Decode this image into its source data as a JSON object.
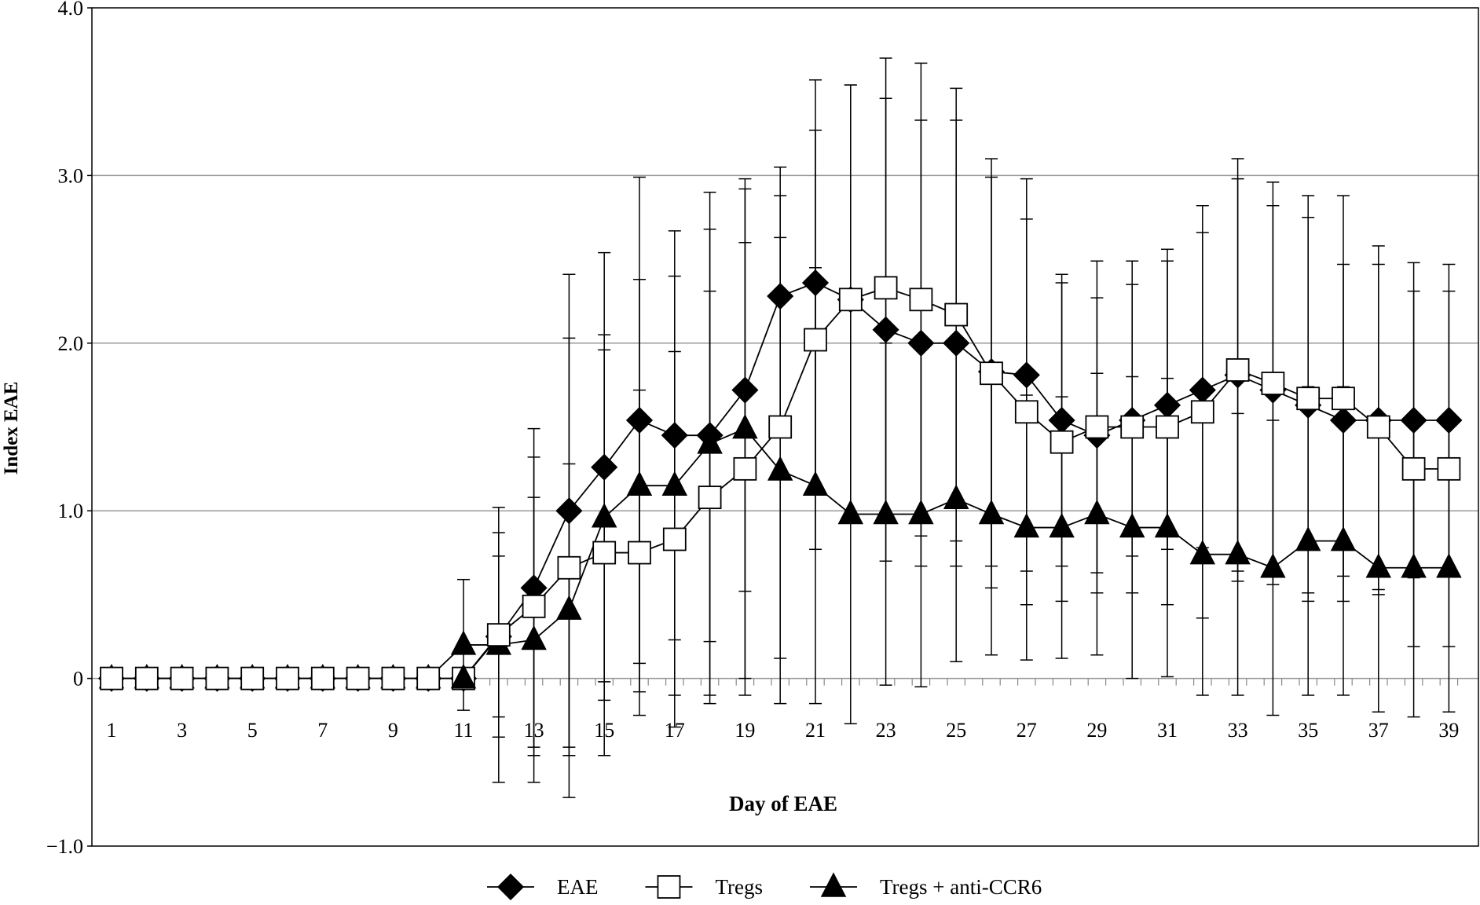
{
  "chart_data": {
    "type": "line",
    "xlabel": "Day of EAE",
    "ylabel": "Index EAE",
    "ylim": [
      -1.0,
      4.0
    ],
    "xlim": [
      1,
      39
    ],
    "yticks": [
      "−1.0",
      "0",
      "1.0",
      "2.0",
      "3.0",
      "4.0"
    ],
    "ytick_values": [
      -1,
      0,
      1,
      2,
      3,
      4
    ],
    "xticks": [
      "1",
      "3",
      "5",
      "7",
      "9",
      "11",
      "13",
      "15",
      "17",
      "19",
      "21",
      "23",
      "25",
      "27",
      "29",
      "31",
      "33",
      "35",
      "37",
      "39"
    ],
    "grid": "horizontal",
    "legend_placement": "bottom",
    "x": [
      1,
      2,
      3,
      4,
      5,
      6,
      7,
      8,
      9,
      10,
      11,
      12,
      13,
      14,
      15,
      16,
      17,
      18,
      19,
      20,
      21,
      22,
      23,
      24,
      25,
      26,
      27,
      28,
      29,
      30,
      31,
      32,
      33,
      34,
      35,
      36,
      37,
      38,
      39
    ],
    "series": [
      {
        "name": "EAE",
        "marker": "diamond",
        "fill": "#000000",
        "values": [
          0,
          0,
          0,
          0,
          0,
          0,
          0,
          0,
          0,
          0,
          0,
          0.25,
          0.54,
          1.0,
          1.26,
          1.54,
          1.45,
          1.45,
          1.72,
          2.28,
          2.36,
          2.26,
          2.08,
          2.0,
          2.0,
          1.83,
          1.81,
          1.54,
          1.45,
          1.54,
          1.63,
          1.72,
          1.81,
          1.72,
          1.63,
          1.54,
          1.54,
          1.54,
          1.54
        ],
        "error": [
          0,
          0,
          0,
          0,
          0,
          0,
          0,
          0,
          0,
          0,
          0,
          0.48,
          0.95,
          1.41,
          1.28,
          1.45,
          1.22,
          1.23,
          1.2,
          0.77,
          1.21,
          1.28,
          1.38,
          1.33,
          1.33,
          1.16,
          1.17,
          0.87,
          0.82,
          0.81,
          0.86,
          0.94,
          1.17,
          1.1,
          1.12,
          0.93,
          1.04,
          0.94,
          0.93
        ]
      },
      {
        "name": "Tregs",
        "marker": "square",
        "fill": "#ffffff",
        "values": [
          0,
          0,
          0,
          0,
          0,
          0,
          0,
          0,
          0,
          0,
          0,
          0.26,
          0.43,
          0.66,
          0.75,
          0.75,
          0.83,
          1.08,
          1.25,
          1.5,
          2.02,
          2.26,
          2.33,
          2.26,
          2.17,
          1.82,
          1.59,
          1.41,
          1.5,
          1.5,
          1.5,
          1.59,
          1.84,
          1.76,
          1.67,
          1.67,
          1.5,
          1.25,
          1.25
        ],
        "error": [
          0,
          0,
          0,
          0,
          0,
          0,
          0,
          0,
          0,
          0,
          0,
          0.61,
          0.89,
          1.37,
          1.21,
          0.97,
          1.12,
          1.23,
          1.35,
          1.38,
          1.25,
          1.28,
          1.37,
          1.41,
          1.35,
          1.28,
          1.15,
          0.95,
          0.99,
          0.99,
          1.06,
          1.23,
          1.26,
          1.2,
          1.21,
          1.21,
          0.97,
          1.06,
          1.06
        ]
      },
      {
        "name": "Tregs + anti-CCR6",
        "marker": "triangle",
        "fill": "#000000",
        "values": [
          0,
          0,
          0,
          0,
          0,
          0,
          0,
          0,
          0,
          0,
          0.2,
          0.2,
          0.23,
          0.41,
          0.96,
          1.15,
          1.15,
          1.4,
          1.49,
          1.24,
          1.15,
          0.98,
          0.98,
          0.98,
          1.07,
          0.98,
          0.9,
          0.9,
          0.98,
          0.9,
          0.9,
          0.74,
          0.74,
          0.66,
          0.82,
          0.82,
          0.66,
          0.66,
          0.66
        ],
        "error": [
          0,
          0,
          0,
          0,
          0,
          0,
          0,
          0,
          0,
          0,
          0.39,
          0.82,
          0.85,
          0.87,
          1.09,
          1.23,
          1.25,
          1.5,
          1.49,
          1.39,
          1.3,
          1.25,
          1.02,
          1.03,
          0.97,
          0.84,
          0.79,
          0.78,
          0.84,
          0.9,
          0.89,
          0.84,
          0.84,
          0.88,
          0.92,
          0.92,
          0.86,
          0.89,
          0.86
        ]
      }
    ],
    "extra_point": {
      "series": "Tregs + anti-CCR6",
      "x": 11,
      "value": 0
    }
  }
}
